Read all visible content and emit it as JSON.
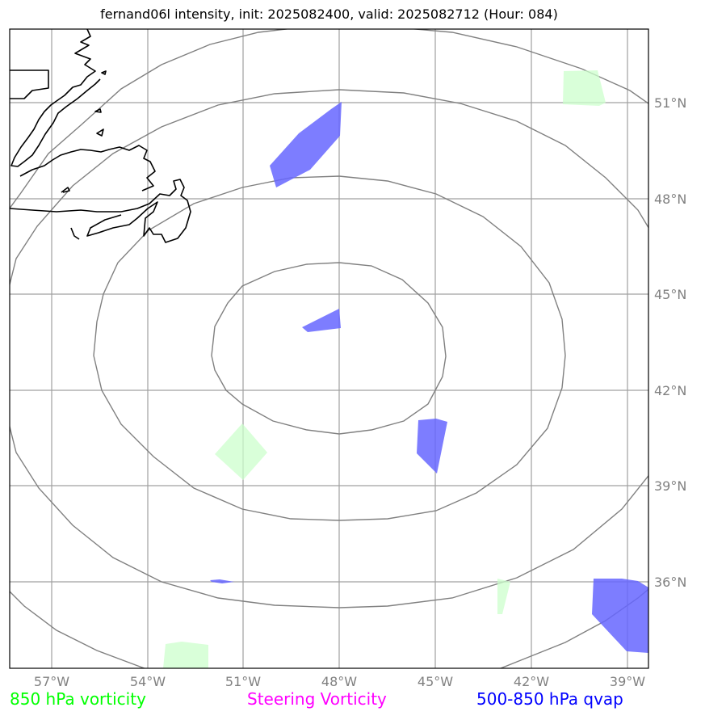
{
  "title": "fernand06l intensity, init: 2025082400, valid: 2025082712 (Hour: 084)",
  "lon_ticks": [
    "57°W",
    "54°W",
    "51°W",
    "48°W",
    "45°W",
    "42°W",
    "39°W"
  ],
  "lat_ticks": [
    "51°N",
    "48°N",
    "45°N",
    "42°N",
    "39°N",
    "36°N"
  ],
  "legend": {
    "vorticity_850": "850 hPa vorticity",
    "steering": "Steering Vorticity",
    "qvap": "500-850 hPa qvap"
  },
  "colors": {
    "vorticity_850": "#00ff00",
    "steering": "#ff00ff",
    "qvap": "#0000ff",
    "grid": "#808080",
    "coast": "#000000"
  }
}
